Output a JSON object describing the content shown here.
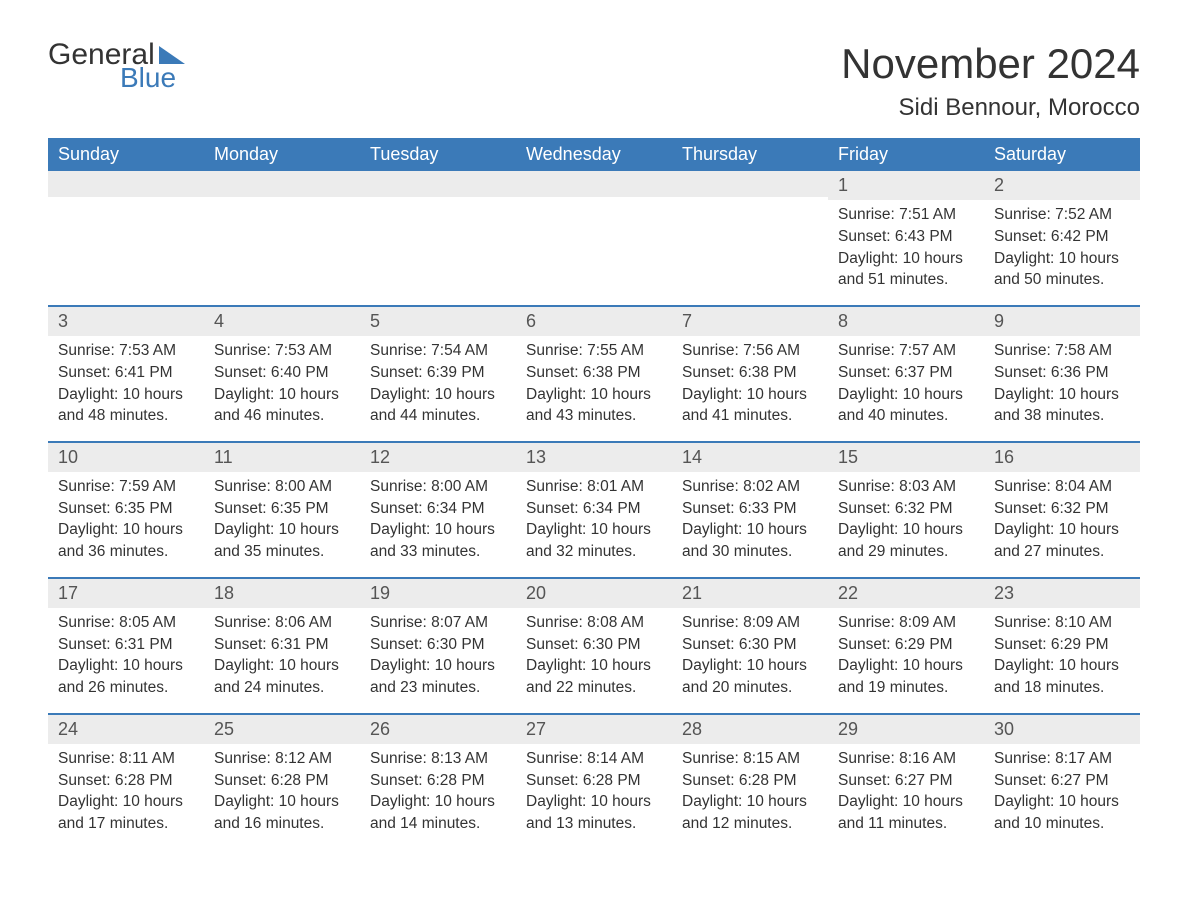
{
  "logo": {
    "word1": "General",
    "word2": "Blue",
    "brand_color": "#3b7ab8"
  },
  "title": "November 2024",
  "location": "Sidi Bennour, Morocco",
  "colors": {
    "header_bg": "#3b7ab8",
    "header_text": "#ffffff",
    "daynum_bg": "#ececec",
    "text": "#333333",
    "page_bg": "#ffffff",
    "row_border": "#3b7ab8"
  },
  "fonts": {
    "title_size": 42,
    "location_size": 24,
    "dow_size": 18,
    "body_size": 15.5
  },
  "labels": {
    "sunrise": "Sunrise",
    "sunset": "Sunset",
    "daylight": "Daylight"
  },
  "days_of_week": [
    "Sunday",
    "Monday",
    "Tuesday",
    "Wednesday",
    "Thursday",
    "Friday",
    "Saturday"
  ],
  "first_weekday_index": 5,
  "days": [
    {
      "n": 1,
      "sunrise": "7:51 AM",
      "sunset": "6:43 PM",
      "daylight": "10 hours and 51 minutes."
    },
    {
      "n": 2,
      "sunrise": "7:52 AM",
      "sunset": "6:42 PM",
      "daylight": "10 hours and 50 minutes."
    },
    {
      "n": 3,
      "sunrise": "7:53 AM",
      "sunset": "6:41 PM",
      "daylight": "10 hours and 48 minutes."
    },
    {
      "n": 4,
      "sunrise": "7:53 AM",
      "sunset": "6:40 PM",
      "daylight": "10 hours and 46 minutes."
    },
    {
      "n": 5,
      "sunrise": "7:54 AM",
      "sunset": "6:39 PM",
      "daylight": "10 hours and 44 minutes."
    },
    {
      "n": 6,
      "sunrise": "7:55 AM",
      "sunset": "6:38 PM",
      "daylight": "10 hours and 43 minutes."
    },
    {
      "n": 7,
      "sunrise": "7:56 AM",
      "sunset": "6:38 PM",
      "daylight": "10 hours and 41 minutes."
    },
    {
      "n": 8,
      "sunrise": "7:57 AM",
      "sunset": "6:37 PM",
      "daylight": "10 hours and 40 minutes."
    },
    {
      "n": 9,
      "sunrise": "7:58 AM",
      "sunset": "6:36 PM",
      "daylight": "10 hours and 38 minutes."
    },
    {
      "n": 10,
      "sunrise": "7:59 AM",
      "sunset": "6:35 PM",
      "daylight": "10 hours and 36 minutes."
    },
    {
      "n": 11,
      "sunrise": "8:00 AM",
      "sunset": "6:35 PM",
      "daylight": "10 hours and 35 minutes."
    },
    {
      "n": 12,
      "sunrise": "8:00 AM",
      "sunset": "6:34 PM",
      "daylight": "10 hours and 33 minutes."
    },
    {
      "n": 13,
      "sunrise": "8:01 AM",
      "sunset": "6:34 PM",
      "daylight": "10 hours and 32 minutes."
    },
    {
      "n": 14,
      "sunrise": "8:02 AM",
      "sunset": "6:33 PM",
      "daylight": "10 hours and 30 minutes."
    },
    {
      "n": 15,
      "sunrise": "8:03 AM",
      "sunset": "6:32 PM",
      "daylight": "10 hours and 29 minutes."
    },
    {
      "n": 16,
      "sunrise": "8:04 AM",
      "sunset": "6:32 PM",
      "daylight": "10 hours and 27 minutes."
    },
    {
      "n": 17,
      "sunrise": "8:05 AM",
      "sunset": "6:31 PM",
      "daylight": "10 hours and 26 minutes."
    },
    {
      "n": 18,
      "sunrise": "8:06 AM",
      "sunset": "6:31 PM",
      "daylight": "10 hours and 24 minutes."
    },
    {
      "n": 19,
      "sunrise": "8:07 AM",
      "sunset": "6:30 PM",
      "daylight": "10 hours and 23 minutes."
    },
    {
      "n": 20,
      "sunrise": "8:08 AM",
      "sunset": "6:30 PM",
      "daylight": "10 hours and 22 minutes."
    },
    {
      "n": 21,
      "sunrise": "8:09 AM",
      "sunset": "6:30 PM",
      "daylight": "10 hours and 20 minutes."
    },
    {
      "n": 22,
      "sunrise": "8:09 AM",
      "sunset": "6:29 PM",
      "daylight": "10 hours and 19 minutes."
    },
    {
      "n": 23,
      "sunrise": "8:10 AM",
      "sunset": "6:29 PM",
      "daylight": "10 hours and 18 minutes."
    },
    {
      "n": 24,
      "sunrise": "8:11 AM",
      "sunset": "6:28 PM",
      "daylight": "10 hours and 17 minutes."
    },
    {
      "n": 25,
      "sunrise": "8:12 AM",
      "sunset": "6:28 PM",
      "daylight": "10 hours and 16 minutes."
    },
    {
      "n": 26,
      "sunrise": "8:13 AM",
      "sunset": "6:28 PM",
      "daylight": "10 hours and 14 minutes."
    },
    {
      "n": 27,
      "sunrise": "8:14 AM",
      "sunset": "6:28 PM",
      "daylight": "10 hours and 13 minutes."
    },
    {
      "n": 28,
      "sunrise": "8:15 AM",
      "sunset": "6:28 PM",
      "daylight": "10 hours and 12 minutes."
    },
    {
      "n": 29,
      "sunrise": "8:16 AM",
      "sunset": "6:27 PM",
      "daylight": "10 hours and 11 minutes."
    },
    {
      "n": 30,
      "sunrise": "8:17 AM",
      "sunset": "6:27 PM",
      "daylight": "10 hours and 10 minutes."
    }
  ]
}
